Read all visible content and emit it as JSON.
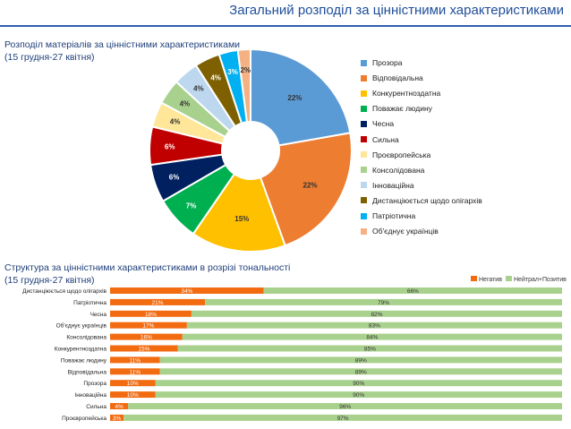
{
  "header": {
    "title": "Загальний розподіл за цінністними характеристиками"
  },
  "pie_section": {
    "title_line1": "Розподіл матеріалів за цінністними характеристиками",
    "title_line2": "(15 грудня-27 квітня)"
  },
  "bar_section": {
    "title_line1": "Структура за цінністними характеристиками в розрізі тональності",
    "title_line2": "(15 грудня-27 квітня)"
  },
  "chart_data": [
    {
      "type": "pie",
      "title": "Розподіл матеріалів за цінністними характеристиками",
      "subtitle": "(15 грудня-27 квітня)",
      "labels": [
        "Прозора",
        "Відповідальна",
        "Конкурентноздатна",
        "Поважає людину",
        "Чесна",
        "Сильна",
        "Проєвропейська",
        "Консолідована",
        "Інноваційна",
        "Дистанціюється щодо олігархів",
        "Патріотична",
        "Об'єднує українців"
      ],
      "values": [
        22,
        22,
        15,
        7,
        6,
        6,
        4,
        4,
        4,
        4,
        3,
        2
      ],
      "value_labels": [
        "22%",
        "22%",
        "15%",
        "7%",
        "6%",
        "6%",
        "4%",
        "4%",
        "4%",
        "4%",
        "3%",
        "2%"
      ],
      "colors": [
        "#5b9bd5",
        "#ed7d31",
        "#ffc000",
        "#00b050",
        "#002060",
        "#c00000",
        "#ffe699",
        "#a9d18e",
        "#bdd7ee",
        "#7f6000",
        "#00b0f0",
        "#f4b183"
      ],
      "legend_position": "right"
    },
    {
      "type": "bar",
      "orientation": "horizontal",
      "stacked": true,
      "title": "Структура за цінністними характеристиками в розрізі тональності",
      "subtitle": "(15 грудня-27 квітня)",
      "categories": [
        "Дистанціюється щодо олігархів",
        "Патріотична",
        "Чесна",
        "Об'єднує українців",
        "Консолідована",
        "Конкурентноздатна",
        "Поважає людину",
        "Відповідальна",
        "Прозора",
        "Інноваційна",
        "Сильна",
        "Проєвропейська"
      ],
      "series": [
        {
          "name": "Негатив",
          "color": "#f26b10",
          "values": [
            34,
            21,
            18,
            17,
            16,
            15,
            11,
            11,
            10,
            10,
            4,
            3
          ],
          "value_labels": [
            "34%",
            "21%",
            "18%",
            "17%",
            "16%",
            "15%",
            "11%",
            "11%",
            "10%",
            "10%",
            "4%",
            "3%"
          ]
        },
        {
          "name": "Нейтрал+Позитив",
          "color": "#a9d18e",
          "values": [
            66,
            79,
            82,
            83,
            84,
            85,
            89,
            89,
            90,
            90,
            96,
            97
          ],
          "value_labels": [
            "66%",
            "79%",
            "82%",
            "83%",
            "84%",
            "85%",
            "89%",
            "89%",
            "90%",
            "90%",
            "96%",
            "97%"
          ]
        }
      ],
      "xlim": [
        0,
        100
      ],
      "legend_position": "top-right"
    }
  ]
}
